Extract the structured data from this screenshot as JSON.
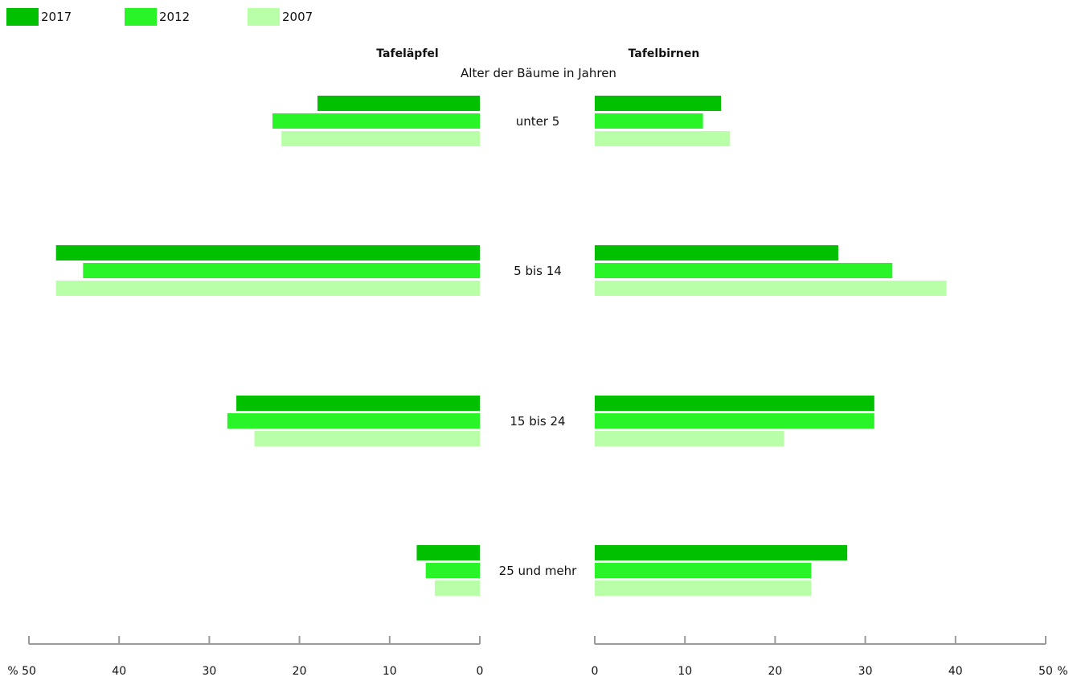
{
  "chart_data": {
    "type": "bar",
    "orientation": "horizontal-mirrored",
    "center_title": "Alter der Bäume in Jahren",
    "categories": [
      "unter 5",
      "5 bis 14",
      "15 bis 24",
      "25 und mehr"
    ],
    "series": [
      {
        "name": "2017",
        "color": "#00c000"
      },
      {
        "name": "2012",
        "color": "#28f428"
      },
      {
        "name": "2007",
        "color": "#b8ffa8"
      }
    ],
    "panels": [
      {
        "title": "Tafeläpfel",
        "direction": "left",
        "values": {
          "2017": [
            18,
            47,
            27,
            7
          ],
          "2012": [
            23,
            44,
            28,
            6
          ],
          "2007": [
            22,
            47,
            25,
            5
          ]
        },
        "xlim": [
          0,
          50
        ],
        "ticks": [
          "50",
          "40",
          "30",
          "20",
          "10",
          "0"
        ],
        "unit_label": "%"
      },
      {
        "title": "Tafelbirnen",
        "direction": "right",
        "values": {
          "2017": [
            14,
            27,
            31,
            28
          ],
          "2012": [
            12,
            33,
            31,
            24
          ],
          "2007": [
            15,
            39,
            21,
            24
          ]
        },
        "xlim": [
          0,
          50
        ],
        "ticks": [
          "0",
          "10",
          "20",
          "30",
          "40",
          "50"
        ],
        "unit_label": "%"
      }
    ],
    "axis_color": "#9a9a9a",
    "grid": false,
    "legend_position": "top-left"
  }
}
